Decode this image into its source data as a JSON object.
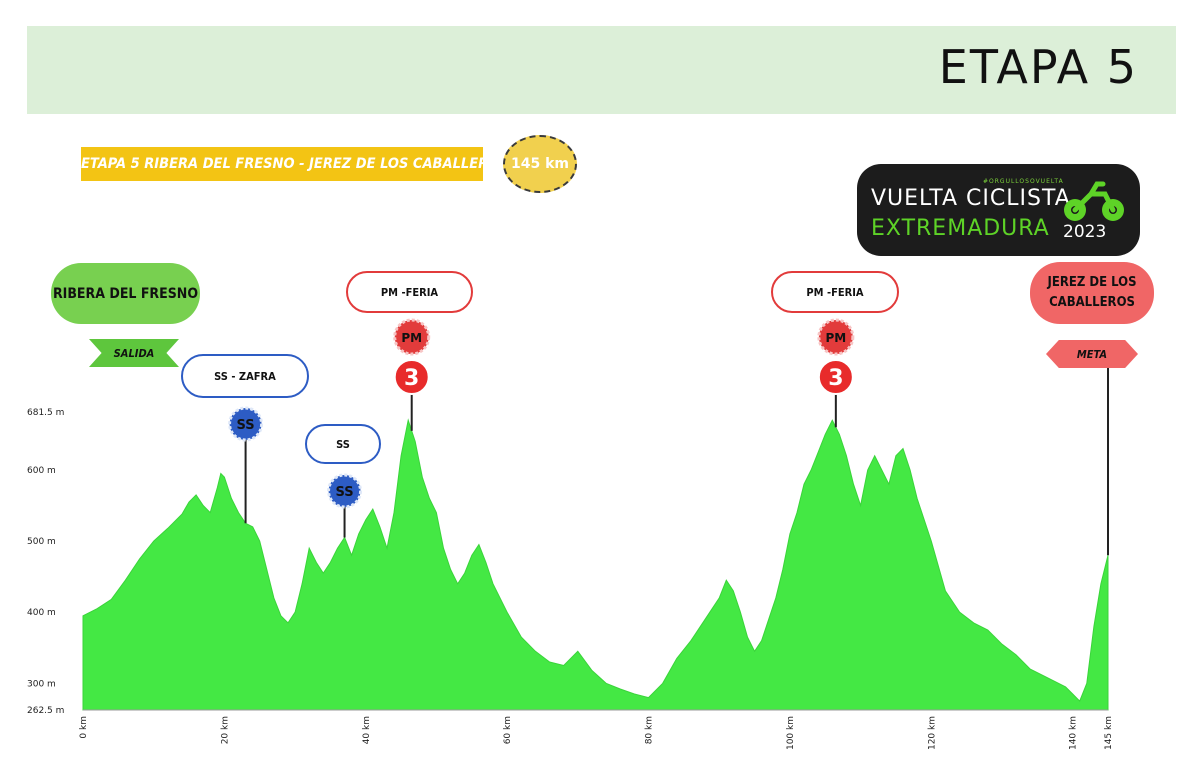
{
  "header": {
    "title": "ETAPA 5"
  },
  "route_banner": "ETAPA 5 RIBERA DEL FRESNO - JEREZ DE LOS CABALLEROS",
  "distance_badge": "145 km",
  "logo": {
    "small_text": "#ORGULLOSOVUELTA",
    "line1": "VUELTA CICLISTA",
    "line2": "EXTREMADURA",
    "year": "2023"
  },
  "start": {
    "name": "RIBERA DEL FRESNO",
    "flag": "SALIDA"
  },
  "finish": {
    "name": "JEREZ DE LOS CABALLEROS",
    "flag": "META"
  },
  "colors": {
    "profile": "#44e844",
    "kom": "#e23b3b",
    "sprint": "#2d5cc4",
    "header_band": "#dcefd8"
  },
  "markers": [
    {
      "type": "sprint",
      "label": "SS - ZAFRA",
      "badge": "SS",
      "km": 23
    },
    {
      "type": "sprint",
      "label": "SS",
      "badge": "SS",
      "km": 37
    },
    {
      "type": "kom",
      "label": "PM -FERIA",
      "badge": "PM",
      "category": "3",
      "km": 46.5
    },
    {
      "type": "kom",
      "label": "PM -FERIA",
      "badge": "PM",
      "category": "3",
      "km": 106.5
    }
  ],
  "chart_data": {
    "type": "area",
    "title": "",
    "xlabel": "",
    "ylabel": "",
    "x_unit": "km",
    "y_unit": "m",
    "xlim": [
      0,
      145
    ],
    "ylim": [
      262.5,
      681.5
    ],
    "x_ticks": [
      {
        "value": 0,
        "label": "0 km"
      },
      {
        "value": 20,
        "label": "20 km"
      },
      {
        "value": 40,
        "label": "40 km"
      },
      {
        "value": 60,
        "label": "60 km"
      },
      {
        "value": 80,
        "label": "80 km"
      },
      {
        "value": 100,
        "label": "100 km"
      },
      {
        "value": 120,
        "label": "120 km"
      },
      {
        "value": 140,
        "label": "140 km"
      },
      {
        "value": 145,
        "label": "145 km"
      }
    ],
    "y_ticks": [
      {
        "value": 262.5,
        "label": "262.5 m"
      },
      {
        "value": 300,
        "label": "300 m"
      },
      {
        "value": 400,
        "label": "400 m"
      },
      {
        "value": 500,
        "label": "500 m"
      },
      {
        "value": 600,
        "label": "600 m"
      },
      {
        "value": 681.5,
        "label": "681.5 m"
      }
    ],
    "x": [
      0,
      2,
      4,
      6,
      8,
      10,
      12,
      14,
      15,
      16,
      17,
      18,
      19,
      19.5,
      20,
      21,
      22,
      23,
      24,
      25,
      26,
      27,
      28,
      29,
      30,
      31,
      32,
      33,
      34,
      35,
      36,
      37,
      38,
      39,
      40,
      41,
      42,
      43,
      44,
      45,
      46,
      47,
      48,
      49,
      50,
      51,
      52,
      53,
      54,
      55,
      56,
      57,
      58,
      60,
      62,
      64,
      66,
      68,
      70,
      72,
      74,
      76,
      78,
      80,
      82,
      84,
      86,
      88,
      90,
      91,
      92,
      93,
      94,
      95,
      96,
      97,
      98,
      99,
      100,
      101,
      102,
      103,
      104,
      105,
      106,
      107,
      108,
      109,
      110,
      111,
      112,
      113,
      114,
      115,
      116,
      117,
      118,
      120,
      122,
      124,
      126,
      128,
      130,
      132,
      134,
      136,
      138,
      139,
      140,
      141,
      142,
      143,
      144,
      145
    ],
    "y": [
      395,
      405,
      418,
      445,
      475,
      500,
      518,
      538,
      555,
      565,
      550,
      540,
      575,
      595,
      590,
      560,
      540,
      525,
      520,
      500,
      460,
      420,
      395,
      385,
      400,
      440,
      490,
      470,
      455,
      470,
      490,
      505,
      480,
      510,
      530,
      545,
      520,
      490,
      540,
      620,
      670,
      640,
      590,
      560,
      540,
      490,
      460,
      440,
      455,
      480,
      495,
      470,
      440,
      400,
      365,
      345,
      330,
      325,
      345,
      318,
      300,
      292,
      285,
      280,
      300,
      335,
      360,
      390,
      420,
      445,
      430,
      400,
      365,
      345,
      360,
      390,
      420,
      460,
      510,
      540,
      580,
      600,
      625,
      650,
      670,
      650,
      620,
      580,
      550,
      600,
      620,
      600,
      580,
      620,
      630,
      600,
      560,
      500,
      430,
      400,
      385,
      375,
      355,
      340,
      320,
      310,
      300,
      295,
      285,
      275,
      300,
      380,
      440,
      480
    ]
  }
}
